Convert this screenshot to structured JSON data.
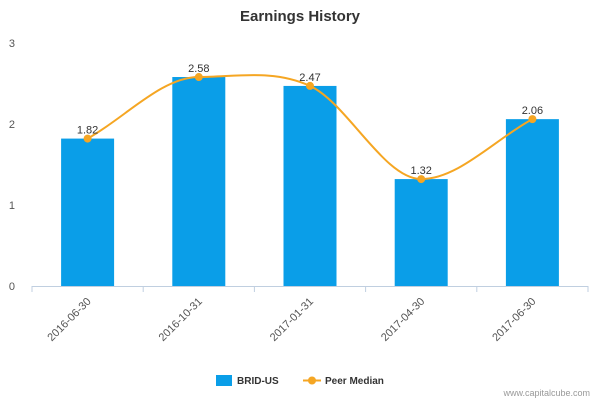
{
  "chart_data": {
    "type": "bar",
    "title": "Earnings History",
    "categories": [
      "2016-06-30",
      "2016-10-31",
      "2017-01-31",
      "2017-04-30",
      "2017-06-30"
    ],
    "series": [
      {
        "name": "BRID-US",
        "type": "bar",
        "values": [
          1.82,
          2.58,
          2.47,
          1.32,
          2.06
        ]
      },
      {
        "name": "Peer Median",
        "type": "line",
        "values": [
          1.82,
          2.58,
          2.47,
          1.32,
          2.06
        ]
      }
    ],
    "data_labels": [
      "1.82",
      "2.58",
      "2.47",
      "1.32",
      "2.06"
    ],
    "ylim": [
      0,
      3
    ],
    "yticks": [
      "0",
      "1",
      "2",
      "3"
    ],
    "xlabel": "",
    "ylabel": "",
    "grid": false,
    "legend_position": "bottom-center",
    "colors": {
      "bar": "#0a9ee8",
      "line": "#f5a623"
    }
  },
  "credit": "www.capitalcube.com"
}
